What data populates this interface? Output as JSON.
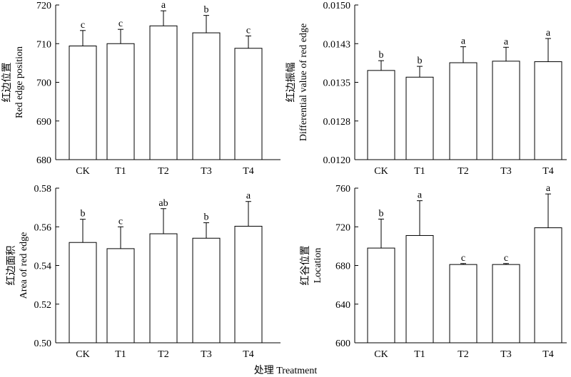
{
  "x_label": "处理 Treatment",
  "chart_data": [
    {
      "type": "bar",
      "categories": [
        "CK",
        "T1",
        "T2",
        "T3",
        "T4"
      ],
      "values": [
        709.4,
        710.0,
        714.6,
        712.8,
        708.8
      ],
      "errors": [
        4.0,
        3.7,
        3.9,
        4.5,
        3.2
      ],
      "letters": [
        "c",
        "c",
        "a",
        "b",
        "c"
      ],
      "ylabel_cn": "红边位置",
      "ylabel_en": "Red edge position",
      "ylim": [
        680,
        720
      ],
      "yticks": [
        680,
        690,
        700,
        710,
        720
      ],
      "ytick_labels": [
        "680",
        "690",
        "700",
        "710",
        "720"
      ]
    },
    {
      "type": "bar",
      "categories": [
        "CK",
        "T1",
        "T2",
        "T3",
        "T4"
      ],
      "values": [
        0.01373,
        0.0136,
        0.01388,
        0.01391,
        0.0139
      ],
      "errors": [
        0.00019,
        0.00021,
        0.00031,
        0.00027,
        0.00045
      ],
      "letters": [
        "b",
        "b",
        "a",
        "a",
        "a"
      ],
      "ylabel_cn": "红边振幅",
      "ylabel_en": "Differential value of red edge",
      "ylim": [
        0.012,
        0.015
      ],
      "yticks": [
        0.012,
        0.01275,
        0.0135,
        0.01425,
        0.015
      ],
      "ytick_labels": [
        "0.0120",
        "0.0128",
        "0.0135",
        "0.0143",
        "0.0150"
      ]
    },
    {
      "type": "bar",
      "categories": [
        "CK",
        "T1",
        "T2",
        "T3",
        "T4"
      ],
      "values": [
        0.5519,
        0.5487,
        0.5564,
        0.5541,
        0.5603
      ],
      "errors": [
        0.012,
        0.0113,
        0.013,
        0.008,
        0.0128
      ],
      "letters": [
        "b",
        "c",
        "ab",
        "b",
        "a"
      ],
      "ylabel_cn": "红边面积",
      "ylabel_en": "Area of red edge",
      "ylim": [
        0.5,
        0.58
      ],
      "yticks": [
        0.5,
        0.52,
        0.54,
        0.56,
        0.58
      ],
      "ytick_labels": [
        "0.50",
        "0.52",
        "0.54",
        "0.56",
        "0.58"
      ]
    },
    {
      "type": "bar",
      "categories": [
        "CK",
        "T1",
        "T2",
        "T3",
        "T4"
      ],
      "values": [
        698,
        711,
        681,
        681,
        719
      ],
      "errors": [
        30,
        36,
        1,
        1,
        35
      ],
      "letters": [
        "b",
        "a",
        "c",
        "c",
        "a"
      ],
      "ylabel_cn": "红谷位置",
      "ylabel_en": "Location",
      "ylim": [
        600,
        760
      ],
      "yticks": [
        600,
        640,
        680,
        720,
        760
      ],
      "ytick_labels": [
        "600",
        "640",
        "680",
        "720",
        "760"
      ]
    }
  ]
}
